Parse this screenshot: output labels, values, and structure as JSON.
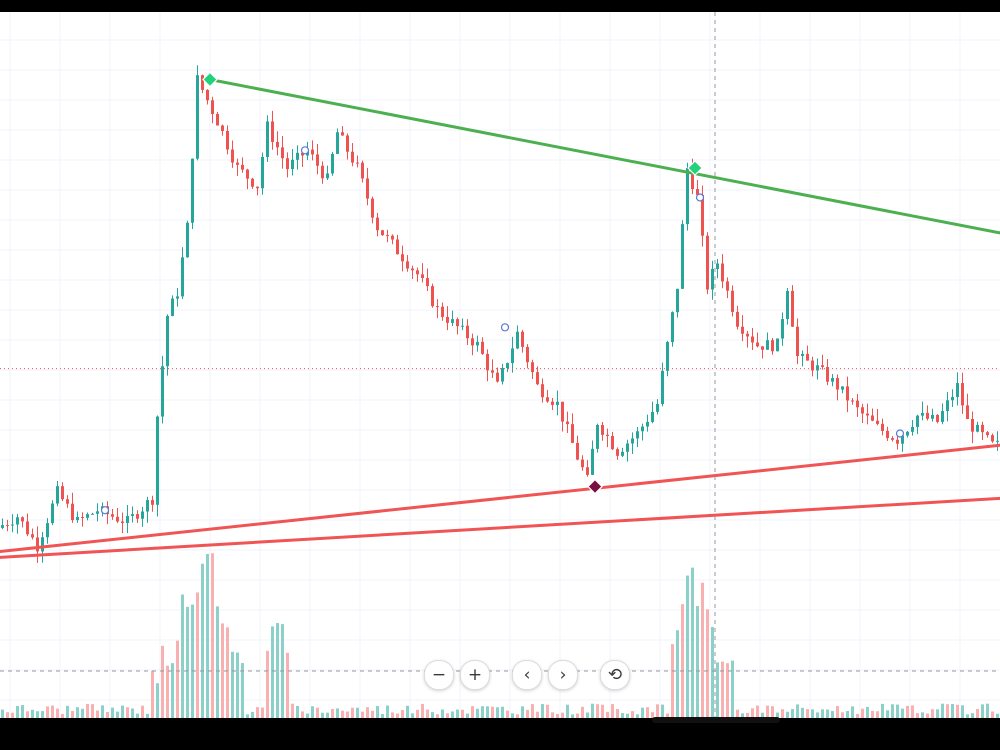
{
  "colors": {
    "background": "#ffffff",
    "grid": "#f0f3fa",
    "up": "#26a69a",
    "down": "#ef5350",
    "resistance_line": "#4caf50",
    "support_line": "#f05454",
    "pivot_high_marker": "#22d27a",
    "pivot_low_marker": "#7a1040",
    "crosshair": "#9598a1",
    "price_line": "#ef5350",
    "volume_up": "#80cbc4",
    "volume_down": "#f7a9a7"
  },
  "controls": {
    "zoom_out": "−",
    "zoom_in": "+",
    "scroll_left": "‹",
    "scroll_right": "›",
    "reset": "⟲",
    "icons": [
      "minus-icon",
      "plus-icon",
      "chevron-left-icon",
      "chevron-right-icon",
      "reset-icon"
    ]
  },
  "chart_data": {
    "type": "candlestick",
    "title": "",
    "xlabel": "",
    "ylabel": "",
    "grid": true,
    "axis_labels_visible": false,
    "ylim": [
      0,
      100
    ],
    "xlim": [
      0,
      200
    ],
    "path_points": [
      [
        0,
        19
      ],
      [
        4,
        21
      ],
      [
        8,
        16
      ],
      [
        12,
        25
      ],
      [
        16,
        20
      ],
      [
        20,
        22
      ],
      [
        26,
        20
      ],
      [
        31,
        24
      ],
      [
        32,
        38
      ],
      [
        34,
        55
      ],
      [
        36,
        59
      ],
      [
        38,
        70
      ],
      [
        40,
        95
      ],
      [
        44,
        88
      ],
      [
        48,
        80
      ],
      [
        52,
        77
      ],
      [
        54,
        87
      ],
      [
        58,
        80
      ],
      [
        62,
        83
      ],
      [
        66,
        78
      ],
      [
        68,
        86
      ],
      [
        72,
        80
      ],
      [
        76,
        70
      ],
      [
        80,
        66
      ],
      [
        84,
        62
      ],
      [
        88,
        56
      ],
      [
        92,
        53
      ],
      [
        96,
        50
      ],
      [
        100,
        43
      ],
      [
        104,
        52
      ],
      [
        108,
        43
      ],
      [
        112,
        40
      ],
      [
        116,
        31
      ],
      [
        118,
        27
      ],
      [
        120,
        37
      ],
      [
        124,
        32
      ],
      [
        128,
        35
      ],
      [
        132,
        40
      ],
      [
        136,
        60
      ],
      [
        138,
        80
      ],
      [
        140,
        75
      ],
      [
        142,
        60
      ],
      [
        144,
        64
      ],
      [
        148,
        54
      ],
      [
        152,
        50
      ],
      [
        156,
        50
      ],
      [
        158,
        60
      ],
      [
        160,
        48
      ],
      [
        164,
        46
      ],
      [
        168,
        43
      ],
      [
        172,
        39
      ],
      [
        176,
        36
      ],
      [
        180,
        34
      ],
      [
        184,
        38
      ],
      [
        188,
        37
      ],
      [
        192,
        43
      ],
      [
        194,
        37
      ],
      [
        199,
        33
      ]
    ],
    "pivots": [
      {
        "type": "high",
        "x": 42,
        "y": 95
      },
      {
        "type": "high",
        "x": 139,
        "y": 80
      },
      {
        "type": "low",
        "x": 119,
        "y": 26
      }
    ],
    "trendlines": [
      {
        "name": "resistance",
        "x1": 42,
        "y1": 95,
        "x2": 200,
        "y2": 69
      },
      {
        "name": "support",
        "x1": 0,
        "y1": 15,
        "x2": 200,
        "y2": 33
      },
      {
        "name": "support-lower",
        "x1": 0,
        "y1": 14,
        "x2": 200,
        "y2": 24
      }
    ],
    "volume_spikes": [
      {
        "x": 32,
        "v": 30
      },
      {
        "x": 34,
        "v": 45
      },
      {
        "x": 38,
        "v": 70
      },
      {
        "x": 40,
        "v": 100
      },
      {
        "x": 42,
        "v": 85
      },
      {
        "x": 44,
        "v": 60
      },
      {
        "x": 46,
        "v": 40
      },
      {
        "x": 55,
        "v": 55
      },
      {
        "x": 136,
        "v": 50
      },
      {
        "x": 138,
        "v": 85
      },
      {
        "x": 140,
        "v": 70
      },
      {
        "x": 142,
        "v": 45
      },
      {
        "x": 144,
        "v": 35
      }
    ],
    "crosshair_x": 143,
    "price_line_y": 46,
    "markers": [
      {
        "x": 21,
        "y": 22
      },
      {
        "x": 61,
        "y": 83
      },
      {
        "x": 101,
        "y": 53
      },
      {
        "x": 140,
        "y": 75
      },
      {
        "x": 180,
        "y": 35
      }
    ]
  }
}
